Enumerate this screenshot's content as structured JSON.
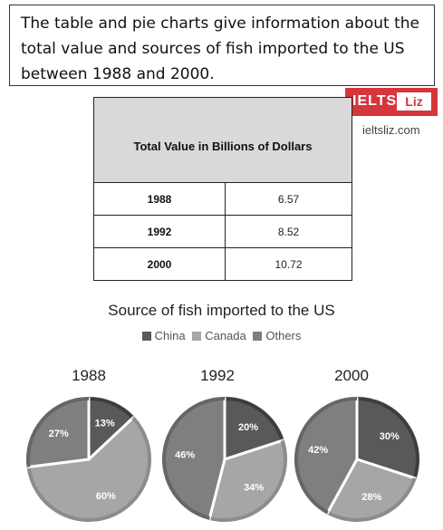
{
  "prompt": {
    "line1": "The table and pie charts give information about the",
    "line2": "total value and sources of fish imported to the US",
    "line3": "between 1988 and 2000."
  },
  "watermark": {
    "logo_text": "IELTS",
    "logo_badge": "Liz",
    "site": "ieltsliz.com"
  },
  "table": {
    "header": "Total Value in Billions of Dollars",
    "rows": [
      {
        "year": "1988",
        "value": "6.57"
      },
      {
        "year": "1992",
        "value": "8.52"
      },
      {
        "year": "2000",
        "value": "10.72"
      }
    ]
  },
  "colors": {
    "china": "#595959",
    "canada": "#a6a6a6",
    "others": "#7f7f7f"
  },
  "chart_data": [
    {
      "type": "table",
      "title": "Total Value in Billions of Dollars",
      "categories": [
        "1988",
        "1992",
        "2000"
      ],
      "values": [
        6.57,
        8.52,
        10.72
      ]
    },
    {
      "type": "pie",
      "title": "Source of fish imported to the US",
      "legend": [
        "China",
        "Canada",
        "Others"
      ],
      "legend_position": "top",
      "pies": [
        {
          "label": "1988",
          "values": [
            13,
            60,
            27
          ]
        },
        {
          "label": "1992",
          "values": [
            20,
            34,
            46
          ]
        },
        {
          "label": "2000",
          "values": [
            30,
            28,
            42
          ]
        }
      ]
    }
  ]
}
